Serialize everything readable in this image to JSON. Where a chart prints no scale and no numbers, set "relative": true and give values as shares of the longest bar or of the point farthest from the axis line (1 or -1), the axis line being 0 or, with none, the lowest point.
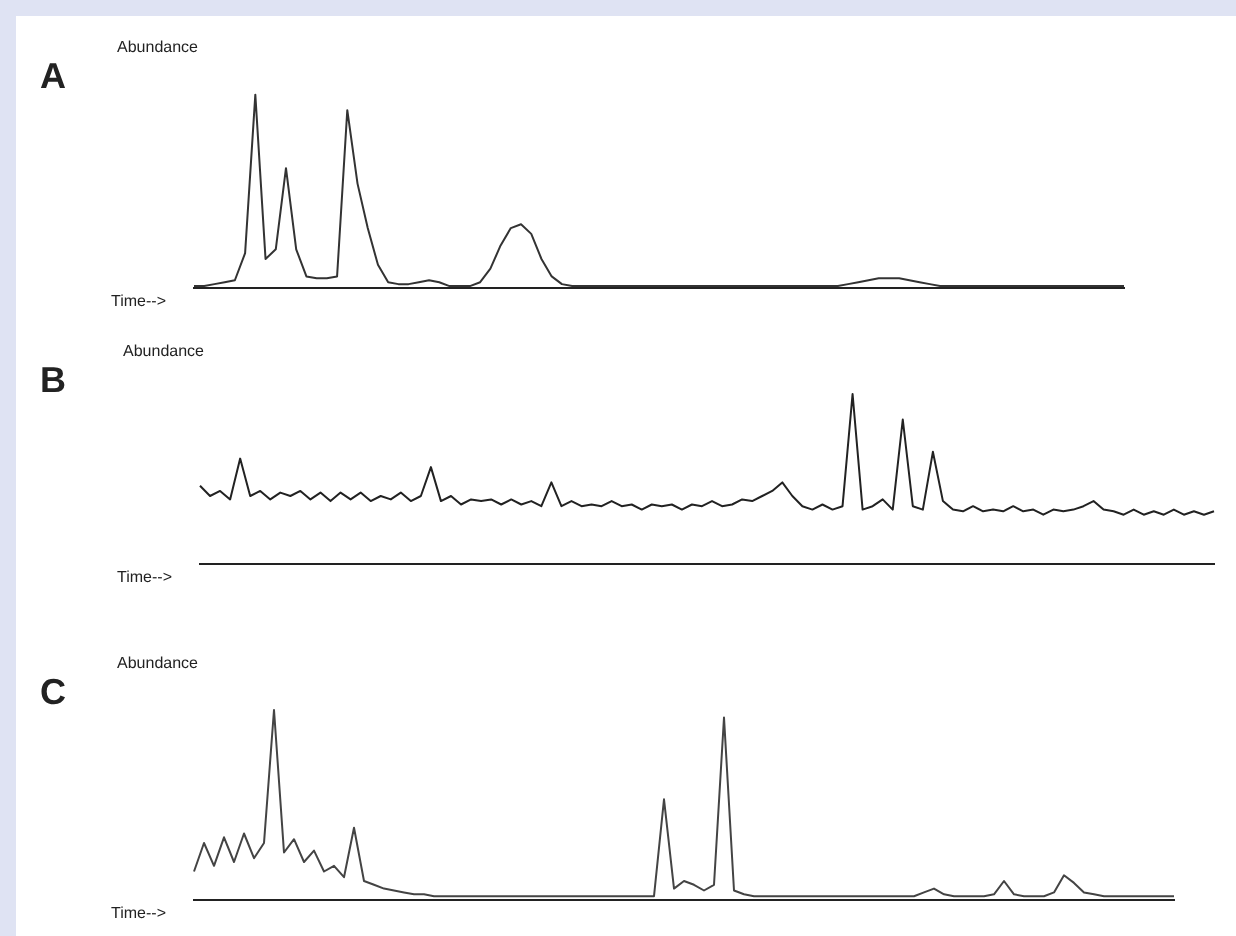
{
  "chart_data": [
    {
      "type": "line",
      "title": "A",
      "xlabel": "Time-->",
      "ylabel": "Abundance",
      "relative": true,
      "categories": [
        null,
        null,
        null,
        null,
        null,
        null,
        null,
        null,
        null,
        null,
        null,
        null,
        null,
        null,
        null,
        null,
        null,
        null,
        null,
        null,
        null,
        null,
        null,
        null,
        null,
        null,
        null,
        null,
        null,
        null,
        null,
        null,
        null,
        null,
        null,
        null,
        null,
        null,
        null,
        null,
        null,
        null,
        null,
        null,
        null,
        null,
        null,
        null,
        null,
        null,
        null,
        null,
        null,
        null,
        null,
        null,
        null,
        null,
        null,
        null,
        null,
        null,
        null,
        null,
        null,
        null,
        null,
        null,
        null,
        null,
        null,
        null,
        null,
        null,
        null,
        null,
        null,
        null,
        null,
        null,
        null,
        null,
        null,
        null,
        null,
        null,
        null,
        null,
        null,
        null,
        null,
        null
      ],
      "series": [
        {
          "color": "#333333",
          "values": [
            0.01,
            0.01,
            0.02,
            0.03,
            0.04,
            0.18,
            1.0,
            0.15,
            0.2,
            0.62,
            0.2,
            0.06,
            0.05,
            0.05,
            0.06,
            0.92,
            0.54,
            0.31,
            0.12,
            0.03,
            0.02,
            0.02,
            0.03,
            0.04,
            0.03,
            0.01,
            0.01,
            0.01,
            0.03,
            0.1,
            0.22,
            0.31,
            0.33,
            0.28,
            0.15,
            0.06,
            0.02,
            0.01,
            0.01,
            0.01,
            0.01,
            0.01,
            0.01,
            0.01,
            0.01,
            0.01,
            0.01,
            0.01,
            0.01,
            0.01,
            0.01,
            0.01,
            0.01,
            0.01,
            0.01,
            0.01,
            0.01,
            0.01,
            0.01,
            0.01,
            0.01,
            0.01,
            0.01,
            0.01,
            0.02,
            0.03,
            0.04,
            0.05,
            0.05,
            0.05,
            0.04,
            0.03,
            0.02,
            0.01,
            0.01,
            0.01,
            0.01,
            0.01,
            0.01,
            0.01,
            0.01,
            0.01,
            0.01,
            0.01,
            0.01,
            0.01,
            0.01,
            0.01,
            0.01,
            0.01,
            0.01,
            0.01
          ]
        }
      ]
    },
    {
      "type": "line",
      "title": "B",
      "xlabel": "Time-->",
      "ylabel": "Abundance",
      "relative": true,
      "categories": [
        null,
        null,
        null,
        null,
        null,
        null,
        null,
        null,
        null,
        null,
        null,
        null,
        null,
        null,
        null,
        null,
        null,
        null,
        null,
        null,
        null,
        null,
        null,
        null,
        null,
        null,
        null,
        null,
        null,
        null,
        null,
        null,
        null,
        null,
        null,
        null,
        null,
        null,
        null,
        null,
        null,
        null,
        null,
        null,
        null,
        null,
        null,
        null,
        null,
        null,
        null,
        null,
        null,
        null,
        null,
        null,
        null,
        null,
        null,
        null,
        null,
        null,
        null,
        null,
        null,
        null,
        null,
        null,
        null,
        null,
        null,
        null,
        null,
        null,
        null,
        null,
        null,
        null,
        null,
        null,
        null,
        null,
        null,
        null,
        null,
        null,
        null,
        null,
        null,
        null,
        null,
        null,
        null,
        null,
        null,
        null,
        null,
        null,
        null,
        null,
        null,
        null
      ],
      "series": [
        {
          "color": "#222222",
          "values": [
            0.46,
            0.4,
            0.43,
            0.38,
            0.62,
            0.4,
            0.43,
            0.38,
            0.42,
            0.4,
            0.43,
            0.38,
            0.42,
            0.37,
            0.42,
            0.38,
            0.42,
            0.37,
            0.4,
            0.38,
            0.42,
            0.37,
            0.4,
            0.57,
            0.37,
            0.4,
            0.35,
            0.38,
            0.37,
            0.38,
            0.35,
            0.38,
            0.35,
            0.37,
            0.34,
            0.48,
            0.34,
            0.37,
            0.34,
            0.35,
            0.34,
            0.37,
            0.34,
            0.35,
            0.32,
            0.35,
            0.34,
            0.35,
            0.32,
            0.35,
            0.34,
            0.37,
            0.34,
            0.35,
            0.38,
            0.37,
            0.4,
            0.43,
            0.48,
            0.4,
            0.34,
            0.32,
            0.35,
            0.32,
            0.34,
            1,
            0.32,
            0.34,
            0.38,
            0.32,
            0.85,
            0.34,
            0.32,
            0.66,
            0.37,
            0.32,
            0.31,
            0.34,
            0.31,
            0.32,
            0.31,
            0.34,
            0.31,
            0.32,
            0.29,
            0.32,
            0.31,
            0.32,
            0.34,
            0.37,
            0.32,
            0.31,
            0.29,
            0.32,
            0.29,
            0.31,
            0.29,
            0.32,
            0.29,
            0.31,
            0.29,
            0.31
          ]
        }
      ]
    },
    {
      "type": "line",
      "title": "C",
      "xlabel": "Time-->",
      "ylabel": "Abundance",
      "relative": true,
      "categories": [
        null,
        null,
        null,
        null,
        null,
        null,
        null,
        null,
        null,
        null,
        null,
        null,
        null,
        null,
        null,
        null,
        null,
        null,
        null,
        null,
        null,
        null,
        null,
        null,
        null,
        null,
        null,
        null,
        null,
        null,
        null,
        null,
        null,
        null,
        null,
        null,
        null,
        null,
        null,
        null,
        null,
        null,
        null,
        null,
        null,
        null,
        null,
        null,
        null,
        null,
        null,
        null,
        null,
        null,
        null,
        null,
        null,
        null,
        null,
        null,
        null,
        null,
        null,
        null,
        null,
        null,
        null,
        null,
        null,
        null,
        null,
        null,
        null,
        null,
        null,
        null,
        null,
        null,
        null,
        null,
        null,
        null,
        null,
        null,
        null,
        null,
        null,
        null,
        null,
        null,
        null,
        null,
        null,
        null,
        null,
        null,
        null,
        null,
        null
      ],
      "series": [
        {
          "color": "#444444",
          "values": [
            0.15,
            0.3,
            0.18,
            0.33,
            0.2,
            0.35,
            0.22,
            0.3,
            1,
            0.25,
            0.32,
            0.2,
            0.26,
            0.15,
            0.18,
            0.12,
            0.38,
            0.1,
            0.08,
            0.06,
            0.05,
            0.04,
            0.03,
            0.03,
            0.02,
            0.02,
            0.02,
            0.02,
            0.02,
            0.02,
            0.02,
            0.02,
            0.02,
            0.02,
            0.02,
            0.02,
            0.02,
            0.02,
            0.02,
            0.02,
            0.02,
            0.02,
            0.02,
            0.02,
            0.02,
            0.02,
            0.02,
            0.53,
            0.06,
            0.1,
            0.08,
            0.05,
            0.08,
            0.96,
            0.05,
            0.03,
            0.02,
            0.02,
            0.02,
            0.02,
            0.02,
            0.02,
            0.02,
            0.02,
            0.02,
            0.02,
            0.02,
            0.02,
            0.02,
            0.02,
            0.02,
            0.02,
            0.02,
            0.04,
            0.06,
            0.03,
            0.02,
            0.02,
            0.02,
            0.02,
            0.03,
            0.1,
            0.03,
            0.02,
            0.02,
            0.02,
            0.04,
            0.13,
            0.09,
            0.04,
            0.03,
            0.02,
            0.02,
            0.02,
            0.02,
            0.02,
            0.02,
            0.02,
            0.02
          ]
        }
      ]
    }
  ]
}
